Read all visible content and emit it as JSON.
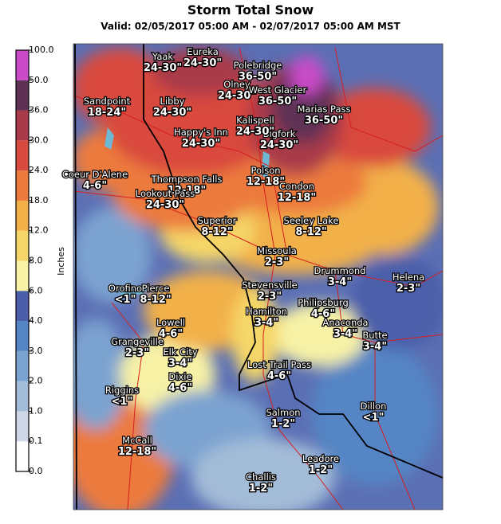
{
  "header": {
    "title": "Storm Total Snow",
    "subtitle": "Valid: 02/05/2017 05:00 AM - 02/07/2017 05:00 AM MST"
  },
  "legend": {
    "label": "Inches",
    "ticks": [
      "0.0",
      "0.1",
      "1.0",
      "2.0",
      "3.0",
      "4.0",
      "6.0",
      "8.0",
      "12.0",
      "18.0",
      "24.0",
      "30.0",
      "36.0",
      "50.0",
      "100.0"
    ],
    "colors": [
      "#ffffff",
      "#cdd7e6",
      "#a3bcd8",
      "#7ba3d0",
      "#5585c4",
      "#4b5eaa",
      "#f7f2a6",
      "#f5d668",
      "#f2b048",
      "#ec7a3c",
      "#d94a3e",
      "#a93a4a",
      "#5e3254",
      "#c94bc8"
    ]
  },
  "places": [
    {
      "name": "Yaak",
      "amount": "24-30\""
    },
    {
      "name": "Eureka",
      "amount": "24-30\""
    },
    {
      "name": "Polebridge",
      "amount": "36-50\""
    },
    {
      "name": "Olney",
      "amount": "24-30\""
    },
    {
      "name": "West Glacier",
      "amount": "36-50\""
    },
    {
      "name": "Sandpoint",
      "amount": "18-24\""
    },
    {
      "name": "Libby",
      "amount": "24-30\""
    },
    {
      "name": "Marias Pass",
      "amount": "36-50\""
    },
    {
      "name": "Happy's Inn",
      "amount": "24-30\""
    },
    {
      "name": "Bigfork",
      "amount": "24-30\""
    },
    {
      "name": "Kalispell",
      "amount": "24-30\""
    },
    {
      "name": "Coeur D'Alene",
      "amount": "4-6\""
    },
    {
      "name": "Thompson Falls",
      "amount": "12-18\""
    },
    {
      "name": "Lookout Pass",
      "amount": "24-30\""
    },
    {
      "name": "Polson",
      "amount": "12-18\""
    },
    {
      "name": "Condon",
      "amount": "12-18\""
    },
    {
      "name": "Superior",
      "amount": "8-12\""
    },
    {
      "name": "Seeley Lake",
      "amount": "8-12\""
    },
    {
      "name": "Missoula",
      "amount": "2-3\""
    },
    {
      "name": "Drummond",
      "amount": "3-4\""
    },
    {
      "name": "Helena",
      "amount": "2-3\""
    },
    {
      "name": "Orofino",
      "amount": "<1\""
    },
    {
      "name": "Pierce",
      "amount": "8-12\""
    },
    {
      "name": "Stevensville",
      "amount": "2-3\""
    },
    {
      "name": "Philipsburg",
      "amount": "4-6\""
    },
    {
      "name": "Hamilton",
      "amount": "3-4\""
    },
    {
      "name": "Lowell",
      "amount": "4-6\""
    },
    {
      "name": "Anaconda",
      "amount": "3-4\""
    },
    {
      "name": "Butte",
      "amount": "3-4\""
    },
    {
      "name": "Grangeville",
      "amount": "2-3\""
    },
    {
      "name": "Elk City",
      "amount": "3-4\""
    },
    {
      "name": "Dixie",
      "amount": "4-6\""
    },
    {
      "name": "Lost Trail Pass",
      "amount": "4-6\""
    },
    {
      "name": "Riggins",
      "amount": "<1\""
    },
    {
      "name": "Dillon",
      "amount": "<1\""
    },
    {
      "name": "Salmon",
      "amount": "1-2\""
    },
    {
      "name": "McCall",
      "amount": "12-18\""
    },
    {
      "name": "Leadore",
      "amount": "1-2\""
    },
    {
      "name": "Challis",
      "amount": "1-2\""
    }
  ]
}
